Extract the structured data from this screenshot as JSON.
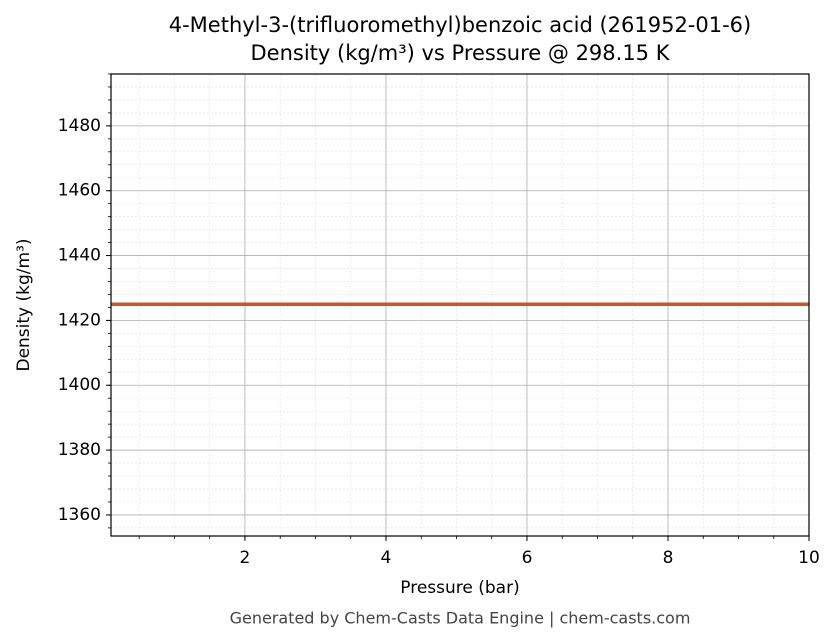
{
  "chart_data": {
    "type": "line",
    "title": "4-Methyl-3-(trifluoromethyl)benzoic acid (261952-01-6)",
    "subtitle": "Density (kg/m³) vs Pressure @ 298.15 K",
    "x_label": "Pressure (bar)",
    "y_label": "Density (kg/m³)",
    "x": [
      0.1,
      10
    ],
    "series": [
      {
        "name": "Density",
        "color": "#c8552b",
        "values": [
          1425,
          1425
        ]
      }
    ],
    "xlim": [
      0.1,
      10
    ],
    "xticks": [
      2,
      4,
      6,
      8,
      10
    ],
    "ylim": [
      1353.5,
      1496
    ],
    "yticks": [
      1360,
      1380,
      1400,
      1420,
      1440,
      1460,
      1480
    ],
    "grid": true,
    "footer": "Generated by Chem-Casts Data Engine | chem-casts.com"
  }
}
